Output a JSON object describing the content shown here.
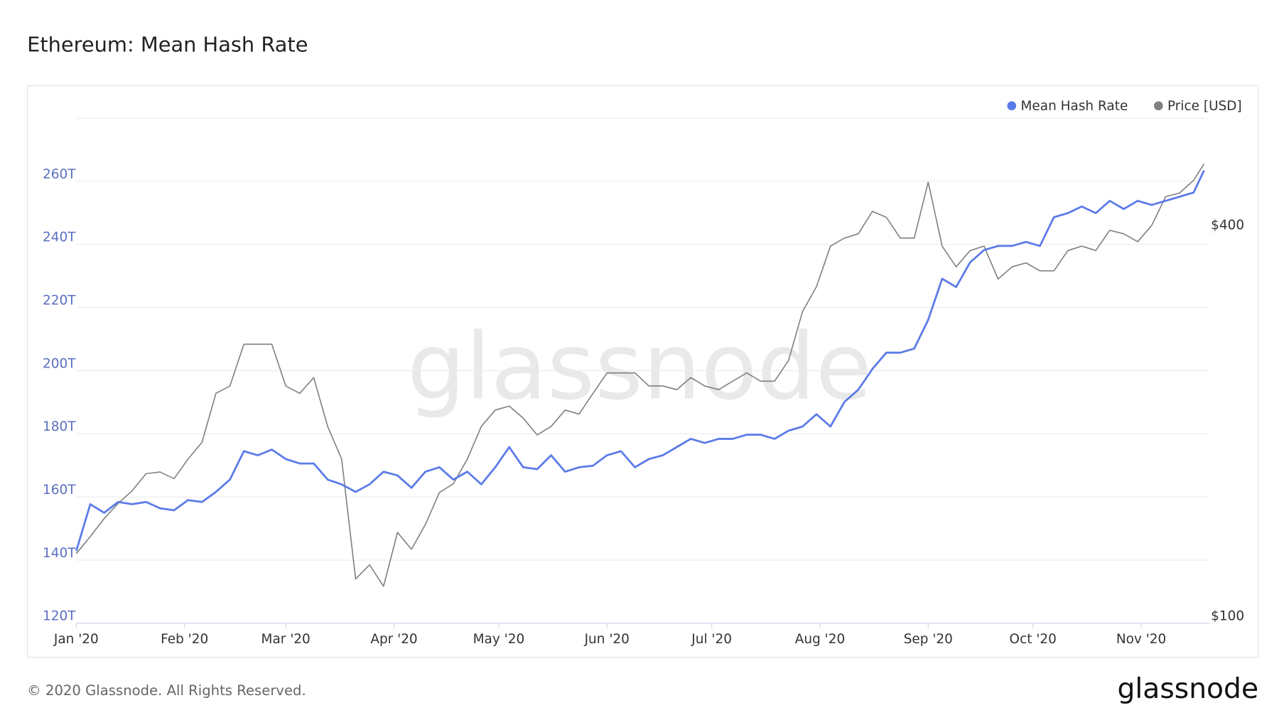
{
  "chart_data": {
    "type": "line",
    "title": "Ethereum: Mean Hash Rate",
    "watermark": "glassnode",
    "footer": "© 2020 Glassnode. All Rights Reserved.",
    "logo": "glassnode",
    "x": [
      0,
      4,
      8,
      12,
      16,
      20,
      24,
      28,
      32,
      36,
      40,
      44,
      48,
      52,
      56,
      60,
      64,
      68,
      72,
      76,
      80,
      84,
      88,
      92,
      96,
      100,
      104,
      108,
      112,
      116,
      120,
      124,
      128,
      132,
      136,
      140,
      144,
      148,
      152,
      156,
      160,
      164,
      168,
      172,
      176,
      180,
      184,
      188,
      192,
      196,
      200,
      204,
      208,
      212,
      216,
      220,
      224,
      228,
      232,
      236,
      240,
      244,
      248,
      252,
      256,
      260,
      264,
      268,
      272,
      276,
      280,
      284,
      288,
      292,
      296,
      300,
      304,
      308,
      312,
      316,
      320,
      323
    ],
    "xlim": [
      0,
      324.5
    ],
    "xticks": [
      {
        "value": 0,
        "label": "Jan '20"
      },
      {
        "value": 31,
        "label": "Feb '20"
      },
      {
        "value": 60,
        "label": "Mar '20"
      },
      {
        "value": 91,
        "label": "Apr '20"
      },
      {
        "value": 121,
        "label": "May '20"
      },
      {
        "value": 152,
        "label": "Jun '20"
      },
      {
        "value": 182,
        "label": "Jul '20"
      },
      {
        "value": 213,
        "label": "Aug '20"
      },
      {
        "value": 244,
        "label": "Sep '20"
      },
      {
        "value": 274,
        "label": "Oct '20"
      },
      {
        "value": 305,
        "label": "Nov '20"
      }
    ],
    "ylim": [
      120,
      280
    ],
    "yticks": [
      {
        "value": 120,
        "label": "120T"
      },
      {
        "value": 140,
        "label": "140T"
      },
      {
        "value": 160,
        "label": "160T"
      },
      {
        "value": 180,
        "label": "180T"
      },
      {
        "value": 200,
        "label": "200T"
      },
      {
        "value": 220,
        "label": "220T"
      },
      {
        "value": 240,
        "label": "240T"
      },
      {
        "value": 260,
        "label": "260T"
      },
      280
    ],
    "y2lim": [
      100,
      600
    ],
    "y2log": true,
    "y2ticks": [
      {
        "value": 100,
        "label": "$100"
      },
      {
        "value": 400,
        "label": "$400"
      }
    ],
    "grid": true,
    "legend": "top-right",
    "series": [
      {
        "name": "Mean Hash Rate",
        "color": "#5b7be8",
        "values": [
          142.9,
          157.7,
          155,
          158.4,
          157.7,
          158.4,
          156.4,
          155.8,
          159,
          158.4,
          161.6,
          165.5,
          174.5,
          173.2,
          175,
          172,
          170.6,
          170.6,
          165.5,
          164,
          161.6,
          164,
          168,
          166.8,
          162.9,
          168,
          169.4,
          165.5,
          168,
          164,
          169.4,
          175.8,
          169.4,
          168.8,
          173.2,
          168,
          169.4,
          169.9,
          173.2,
          174.5,
          169.4,
          172,
          173.2,
          175.8,
          178.4,
          177.1,
          178.4,
          178.4,
          179.7,
          179.7,
          178.4,
          181,
          182.3,
          186.2,
          182.3,
          190.1,
          194,
          200.5,
          205.7,
          205.7,
          207,
          216.1,
          229.1,
          226.5,
          234.3,
          238.2,
          239.5,
          239.5,
          240.8,
          239.5,
          248.6,
          249.9,
          252,
          249.9,
          253.8,
          251.2,
          253.8,
          252.5,
          253.8,
          255.1,
          256.4,
          263.4
        ]
      },
      {
        "name": "Price [USD]",
        "color": "#808080",
        "axis": "y2",
        "values": [
          128,
          136,
          145,
          153,
          160,
          170,
          171,
          167,
          179,
          190,
          226,
          232,
          269,
          269,
          269,
          232,
          226,
          239,
          201,
          179,
          117,
          123,
          114,
          138,
          130,
          142,
          159,
          164,
          179,
          201,
          213,
          216,
          207,
          195,
          201,
          213,
          210,
          226,
          243,
          243,
          243,
          232,
          232,
          229,
          239,
          232,
          229,
          236,
          243,
          236,
          236,
          254,
          302,
          330,
          381,
          392,
          398,
          431,
          422,
          392,
          392,
          478,
          381,
          354,
          375,
          381,
          339,
          354,
          359,
          349,
          349,
          375,
          381,
          375,
          403,
          398,
          387,
          410,
          454,
          460,
          481,
          510
        ]
      }
    ]
  }
}
